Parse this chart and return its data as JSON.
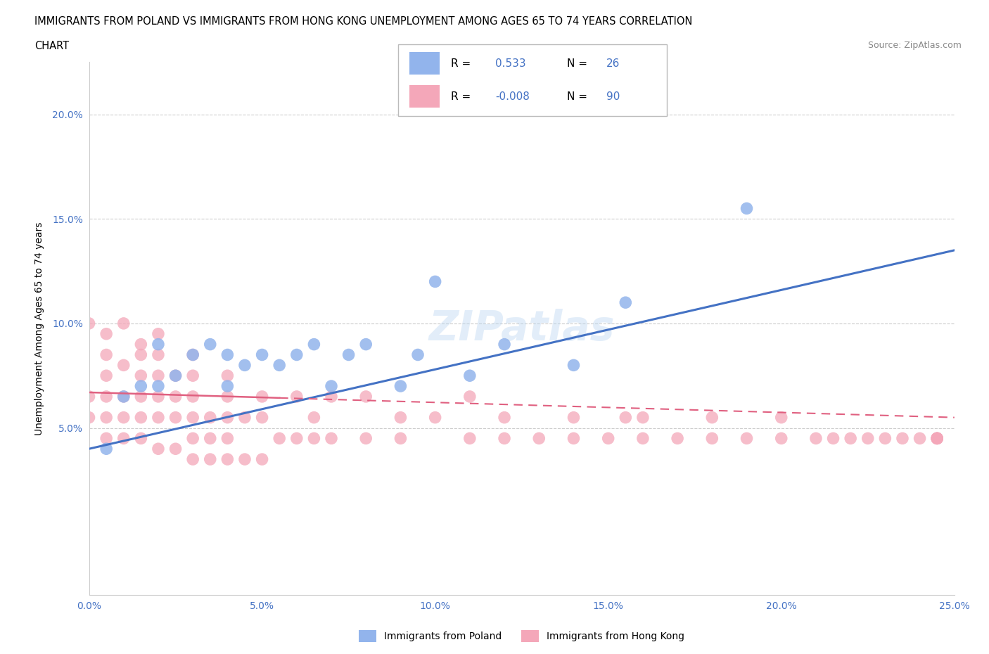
{
  "title_line1": "IMMIGRANTS FROM POLAND VS IMMIGRANTS FROM HONG KONG UNEMPLOYMENT AMONG AGES 65 TO 74 YEARS CORRELATION",
  "title_line2": "CHART",
  "source": "Source: ZipAtlas.com",
  "ylabel": "Unemployment Among Ages 65 to 74 years",
  "xlim": [
    0.0,
    0.25
  ],
  "ylim": [
    -0.03,
    0.225
  ],
  "xticks": [
    0.0,
    0.05,
    0.1,
    0.15,
    0.2,
    0.25
  ],
  "xticklabels": [
    "0.0%",
    "5.0%",
    "10.0%",
    "15.0%",
    "20.0%",
    "25.0%"
  ],
  "yticks": [
    0.05,
    0.1,
    0.15,
    0.2
  ],
  "yticklabels": [
    "5.0%",
    "10.0%",
    "15.0%",
    "20.0%"
  ],
  "poland_color": "#92B4EC",
  "hk_color": "#F4A7B9",
  "poland_line_color": "#4472C4",
  "hk_line_color": "#E06080",
  "legend_poland_R": "0.533",
  "legend_poland_N": "26",
  "legend_hk_R": "-0.008",
  "legend_hk_N": "90",
  "poland_scatter_x": [
    0.005,
    0.01,
    0.015,
    0.02,
    0.02,
    0.025,
    0.03,
    0.035,
    0.04,
    0.04,
    0.045,
    0.05,
    0.055,
    0.06,
    0.065,
    0.07,
    0.075,
    0.08,
    0.09,
    0.095,
    0.1,
    0.11,
    0.12,
    0.14,
    0.155,
    0.19
  ],
  "poland_scatter_y": [
    0.04,
    0.065,
    0.07,
    0.07,
    0.09,
    0.075,
    0.085,
    0.09,
    0.07,
    0.085,
    0.08,
    0.085,
    0.08,
    0.085,
    0.09,
    0.07,
    0.085,
    0.09,
    0.07,
    0.085,
    0.12,
    0.075,
    0.09,
    0.08,
    0.11,
    0.155
  ],
  "hk_scatter_x": [
    0.0,
    0.0,
    0.0,
    0.005,
    0.005,
    0.005,
    0.005,
    0.005,
    0.005,
    0.01,
    0.01,
    0.01,
    0.01,
    0.01,
    0.015,
    0.015,
    0.015,
    0.015,
    0.015,
    0.015,
    0.02,
    0.02,
    0.02,
    0.02,
    0.02,
    0.02,
    0.025,
    0.025,
    0.025,
    0.025,
    0.03,
    0.03,
    0.03,
    0.03,
    0.03,
    0.03,
    0.035,
    0.035,
    0.035,
    0.04,
    0.04,
    0.04,
    0.04,
    0.04,
    0.045,
    0.045,
    0.05,
    0.05,
    0.05,
    0.055,
    0.06,
    0.06,
    0.065,
    0.065,
    0.07,
    0.07,
    0.08,
    0.08,
    0.09,
    0.09,
    0.1,
    0.11,
    0.11,
    0.12,
    0.12,
    0.13,
    0.14,
    0.14,
    0.15,
    0.155,
    0.16,
    0.16,
    0.17,
    0.18,
    0.18,
    0.19,
    0.2,
    0.2,
    0.21,
    0.215,
    0.22,
    0.225,
    0.23,
    0.235,
    0.24,
    0.245,
    0.245,
    0.245,
    0.245,
    0.245
  ],
  "hk_scatter_y": [
    0.055,
    0.065,
    0.1,
    0.045,
    0.055,
    0.065,
    0.075,
    0.085,
    0.095,
    0.045,
    0.055,
    0.065,
    0.08,
    0.1,
    0.045,
    0.055,
    0.065,
    0.075,
    0.085,
    0.09,
    0.04,
    0.055,
    0.065,
    0.075,
    0.085,
    0.095,
    0.04,
    0.055,
    0.065,
    0.075,
    0.035,
    0.045,
    0.055,
    0.065,
    0.075,
    0.085,
    0.035,
    0.045,
    0.055,
    0.035,
    0.045,
    0.055,
    0.065,
    0.075,
    0.035,
    0.055,
    0.035,
    0.055,
    0.065,
    0.045,
    0.045,
    0.065,
    0.045,
    0.055,
    0.045,
    0.065,
    0.045,
    0.065,
    0.045,
    0.055,
    0.055,
    0.045,
    0.065,
    0.045,
    0.055,
    0.045,
    0.045,
    0.055,
    0.045,
    0.055,
    0.045,
    0.055,
    0.045,
    0.045,
    0.055,
    0.045,
    0.045,
    0.055,
    0.045,
    0.045,
    0.045,
    0.045,
    0.045,
    0.045,
    0.045,
    0.045,
    0.045,
    0.045,
    0.045,
    0.045
  ],
  "poland_line_x0": 0.0,
  "poland_line_y0": 0.04,
  "poland_line_x1": 0.25,
  "poland_line_y1": 0.135,
  "hk_line_solid_x0": 0.0,
  "hk_line_solid_x1": 0.055,
  "hk_line_y0": 0.067,
  "hk_line_y1": 0.063,
  "hk_line_dash_x0": 0.055,
  "hk_line_dash_x1": 0.25,
  "hk_line_yend": 0.055,
  "watermark_text": "ZIPatlas",
  "bg_color": "#ffffff"
}
